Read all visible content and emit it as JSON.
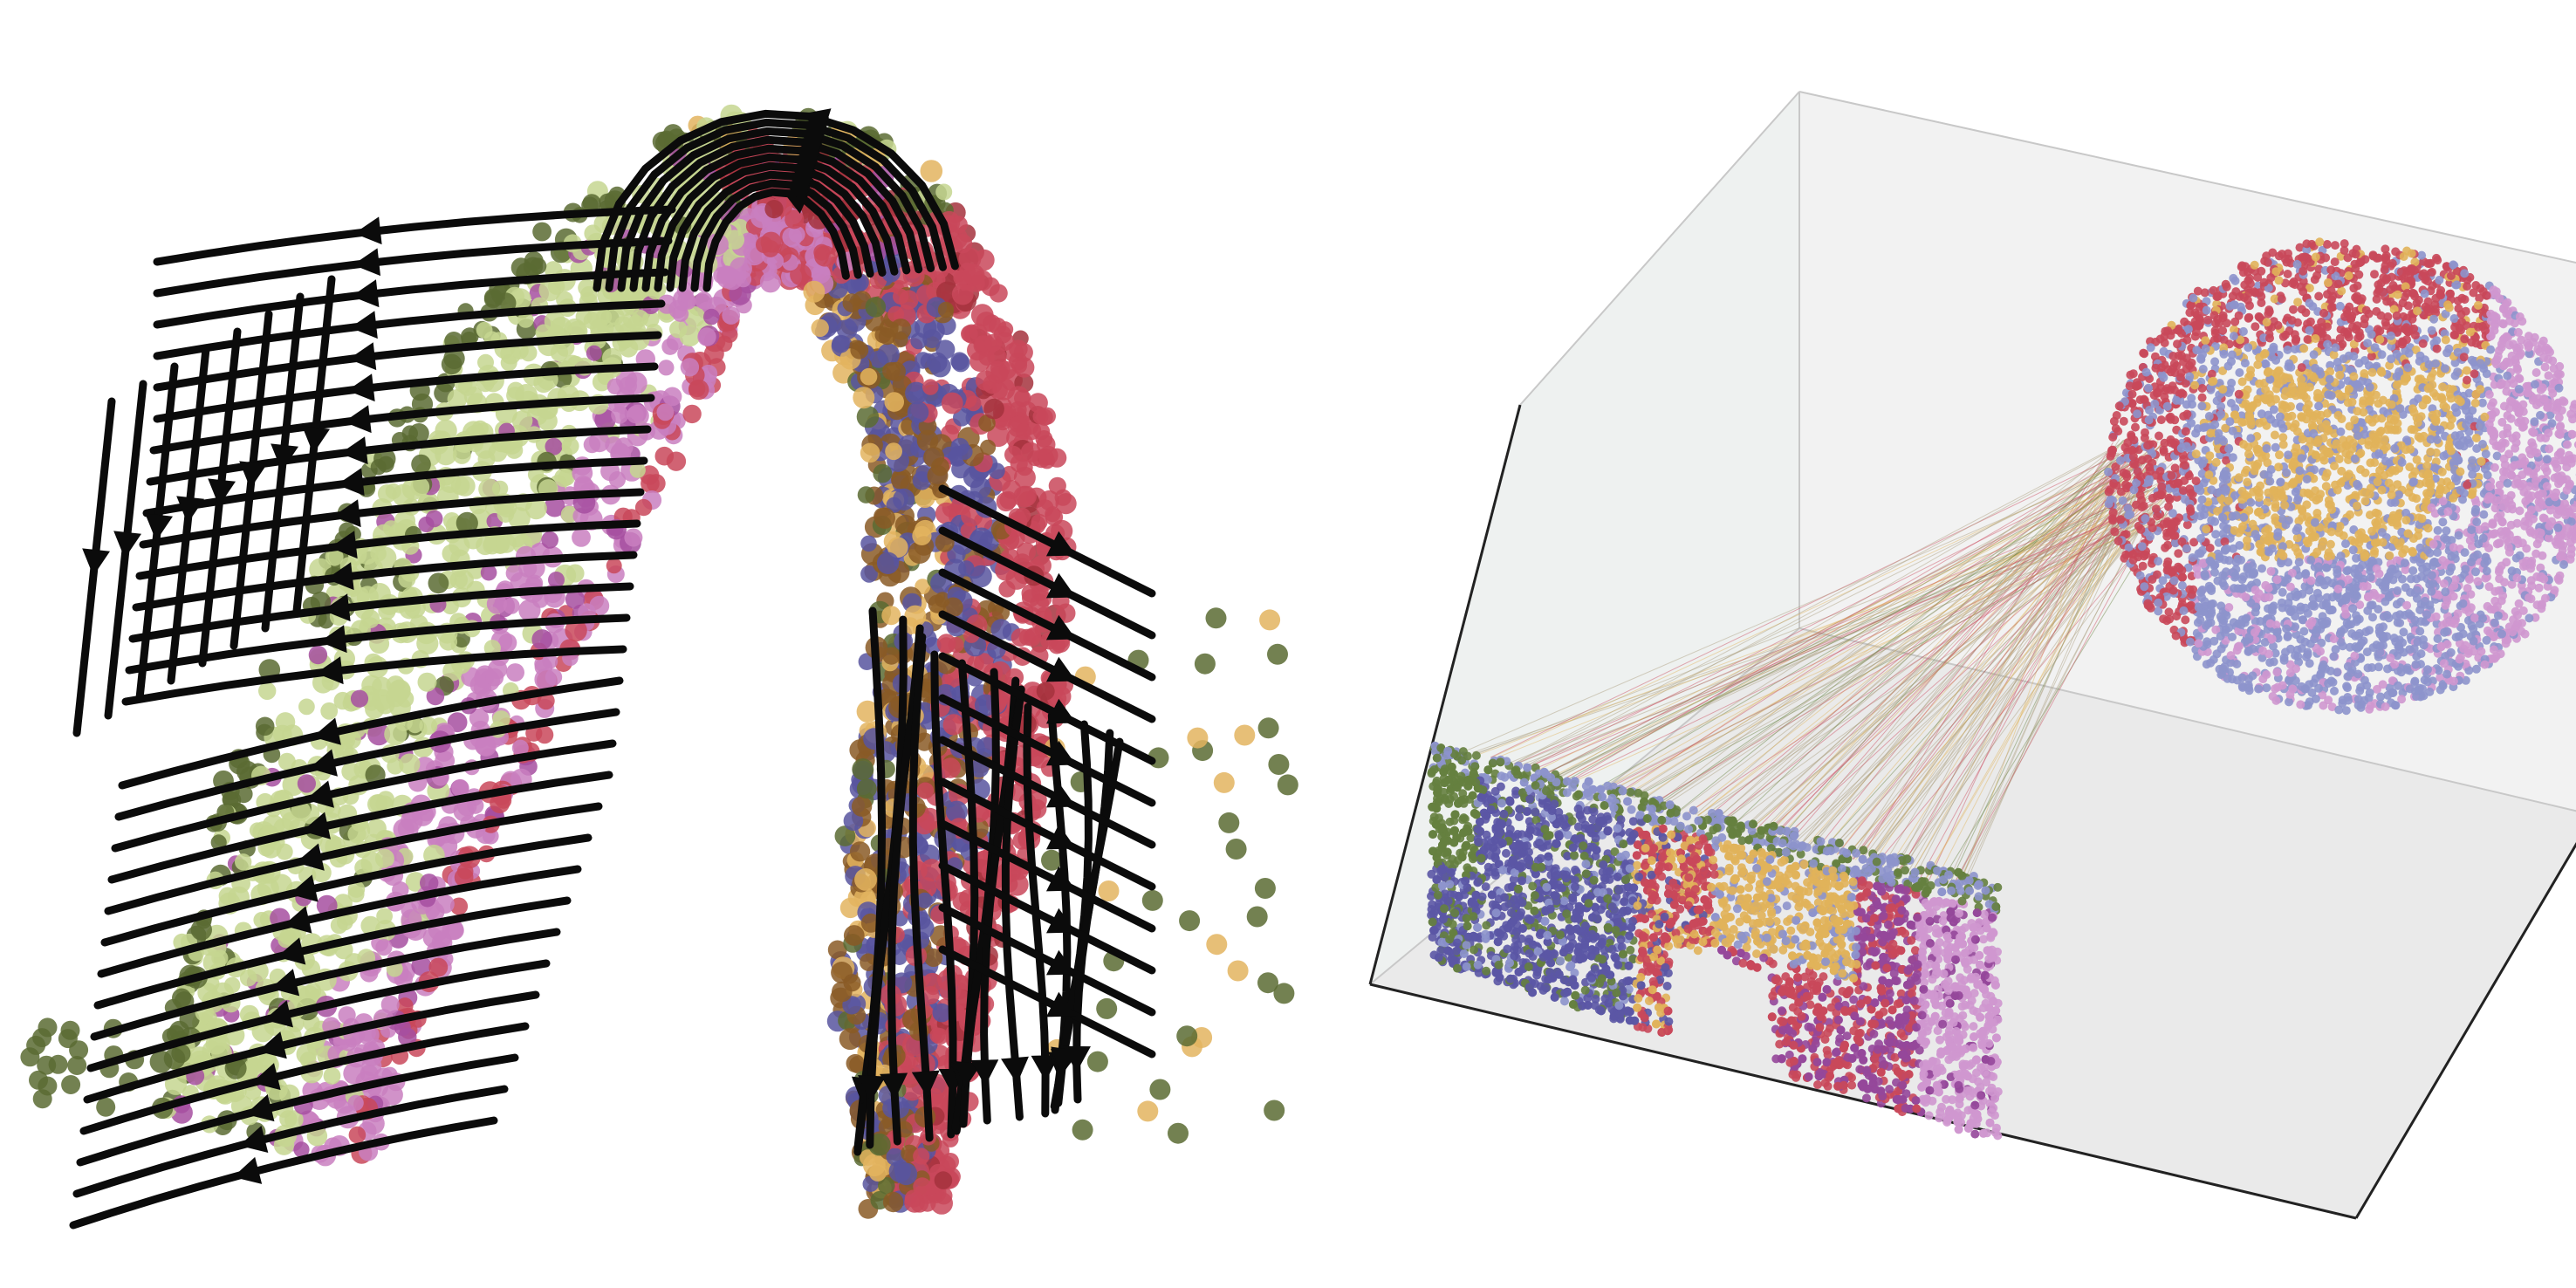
{
  "figure": {
    "left_panel": {
      "kind": "streamline-embedding",
      "colors": {
        "olive": "#5b6b32",
        "light_green": "#c6d690",
        "pink": "#c97fc0",
        "magenta": "#a64fa0",
        "red": "#c9485a",
        "dark_red": "#a5333d",
        "gold": "#e3b45f",
        "brown": "#8a5a26",
        "blue": "#58559f",
        "stream": "#0b0b0b"
      }
    },
    "right_panel": {
      "kind": "3d-alignment-scatter",
      "colors": {
        "pane_left": "#eef1f0",
        "pane_back": "#f2f2f2",
        "pane_floor": "#eaeaea",
        "edge": "#c8c8c8",
        "axis": "#222222",
        "red": "#c9485a",
        "blue": "#8d93cc",
        "gold": "#e1b35a",
        "pink": "#cf97cf",
        "olive": "#65803f",
        "navy": "#5b57a5",
        "magenta": "#95479a",
        "link": "#a99c7a"
      }
    }
  }
}
